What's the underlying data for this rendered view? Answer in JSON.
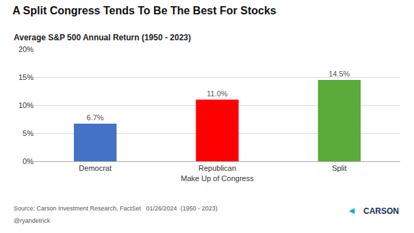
{
  "chart_data": {
    "type": "bar",
    "title": "A Split Congress Tends To Be The Best For Stocks",
    "subtitle": "Average S&P 500 Annual Return (1950 - 2023)",
    "categories": [
      "Democrat",
      "Republican",
      "Split"
    ],
    "values": [
      6.7,
      11.0,
      14.5
    ],
    "value_labels": [
      "6.7%",
      "11.0%",
      "14.5%"
    ],
    "data_labels": true,
    "colors": [
      "#4472c4",
      "#ff0000",
      "#5aab3a"
    ],
    "xlabel": "Make Up of Congress",
    "ylim": [
      0,
      20
    ],
    "yticks": [
      {
        "value": 0,
        "label": "0%"
      },
      {
        "value": 5,
        "label": "5%"
      },
      {
        "value": 10,
        "label": "10%"
      },
      {
        "value": 15,
        "label": "15%"
      },
      {
        "value": 20,
        "label": "20%"
      }
    ],
    "grid": true,
    "annotations": [
      "Source: Carson Investment Research, FactSet   01/26/2024  (1950 - 2023)",
      "@ryandetrick",
      "◄",
      "CARSON"
    ]
  }
}
